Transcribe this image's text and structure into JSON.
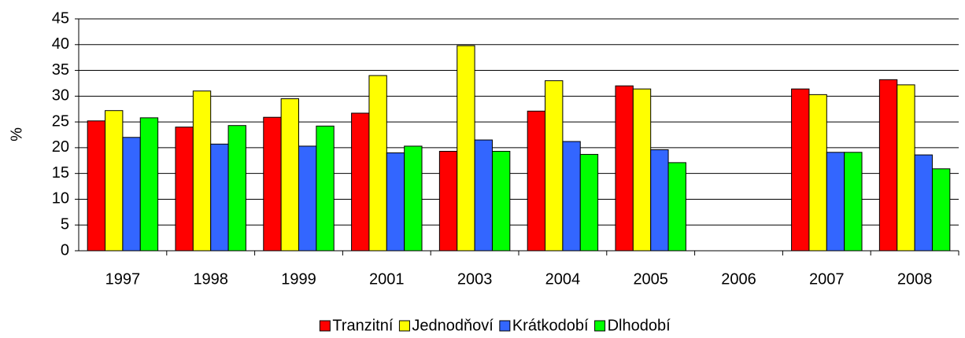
{
  "chart_data": {
    "type": "bar",
    "y_label": "%",
    "categories": [
      "1997",
      "1998",
      "1999",
      "2001",
      "2003",
      "2004",
      "2005",
      "2006",
      "2007",
      "2008"
    ],
    "series": [
      {
        "name": "Tranzitní",
        "color": "#ff0000",
        "values": [
          25.2,
          24,
          25.9,
          26.7,
          19.3,
          27.1,
          32,
          null,
          31.4,
          33.2
        ]
      },
      {
        "name": "Jednodňoví",
        "color": "#ffff00",
        "values": [
          27.2,
          31,
          29.5,
          34,
          39.8,
          33,
          31.4,
          null,
          30.3,
          32.2
        ]
      },
      {
        "name": "Krátkodobí",
        "color": "#3366ff",
        "values": [
          22,
          20.7,
          20.3,
          19,
          21.5,
          21.2,
          19.6,
          null,
          19.1,
          18.6
        ]
      },
      {
        "name": "Dlhodobí",
        "color": "#00ff00",
        "values": [
          25.8,
          24.3,
          24.2,
          20.3,
          19.3,
          18.7,
          17.1,
          null,
          19.1,
          15.9
        ]
      }
    ],
    "ylim": [
      0,
      45
    ],
    "yticks": [
      0,
      5,
      10,
      15,
      20,
      25,
      30,
      35,
      40,
      45
    ],
    "grid": true,
    "legend": "bottom"
  }
}
